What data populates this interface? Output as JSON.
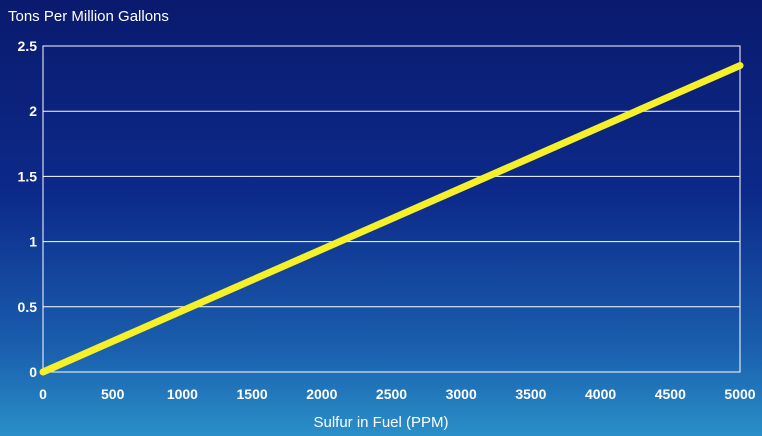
{
  "chart_data": {
    "type": "line",
    "ylabel": "Tons Per Million Gallons",
    "xlabel": "Sulfur in Fuel (PPM)",
    "xlim": [
      0,
      5000
    ],
    "ylim": [
      0,
      2.5
    ],
    "x_ticks": [
      "0",
      "500",
      "1000",
      "1500",
      "2000",
      "2500",
      "3000",
      "3500",
      "4000",
      "4500",
      "5000"
    ],
    "y_ticks": [
      "0",
      "0.5",
      "1",
      "1.5",
      "2",
      "2.5"
    ],
    "grid": true,
    "series": [
      {
        "x": [
          0,
          500,
          1000,
          1500,
          2000,
          2500,
          3000,
          3500,
          4000,
          4500,
          5000
        ],
        "y": [
          0,
          0.235,
          0.47,
          0.705,
          0.94,
          1.175,
          1.41,
          1.645,
          1.88,
          2.115,
          2.35
        ]
      }
    ],
    "colors": {
      "line": "#f5f02a",
      "grid": "#ffffff",
      "axes": "#ffffff"
    }
  }
}
